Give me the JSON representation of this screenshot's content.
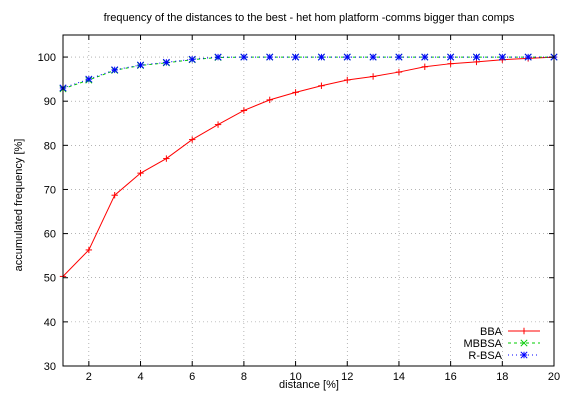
{
  "chart_data": {
    "type": "line",
    "title": "frequency of the distances to the best - het hom platform -comms bigger than comps",
    "xlabel": "distance [%]",
    "ylabel": "accumulated frequency [%]",
    "xlim": [
      1,
      20
    ],
    "ylim": [
      30,
      105
    ],
    "xticks": [
      2,
      4,
      6,
      8,
      10,
      12,
      14,
      16,
      18,
      20
    ],
    "yticks": [
      30,
      40,
      50,
      60,
      70,
      80,
      90,
      100
    ],
    "grid": true,
    "legend_position": "bottom-right",
    "x": [
      1,
      2,
      3,
      4,
      5,
      6,
      7,
      8,
      9,
      10,
      11,
      12,
      13,
      14,
      15,
      16,
      17,
      18,
      19,
      20
    ],
    "series": [
      {
        "name": "BBA",
        "color": "#ff0000",
        "marker": "plus",
        "dash": "",
        "values": [
          50.3,
          56.3,
          68.7,
          73.7,
          77.0,
          81.3,
          84.7,
          87.9,
          90.3,
          92.0,
          93.5,
          94.8,
          95.6,
          96.6,
          97.8,
          98.5,
          98.9,
          99.4,
          99.7,
          100.0
        ]
      },
      {
        "name": "MBBSA",
        "color": "#00cc00",
        "marker": "cross",
        "dash": "3,3",
        "values": [
          92.8,
          94.8,
          97.0,
          98.1,
          98.7,
          99.4,
          99.9,
          100.0,
          100.0,
          100.0,
          100.0,
          100.0,
          100.0,
          100.0,
          100.0,
          100.0,
          100.0,
          100.0,
          100.0,
          100.0
        ]
      },
      {
        "name": "R-BSA",
        "color": "#0000ff",
        "marker": "star",
        "dash": "1,3",
        "values": [
          93.0,
          95.0,
          97.1,
          98.2,
          98.8,
          99.5,
          100.0,
          100.0,
          100.0,
          100.0,
          100.0,
          100.0,
          100.0,
          100.0,
          100.0,
          100.0,
          100.0,
          100.0,
          100.0,
          100.0
        ]
      }
    ]
  }
}
